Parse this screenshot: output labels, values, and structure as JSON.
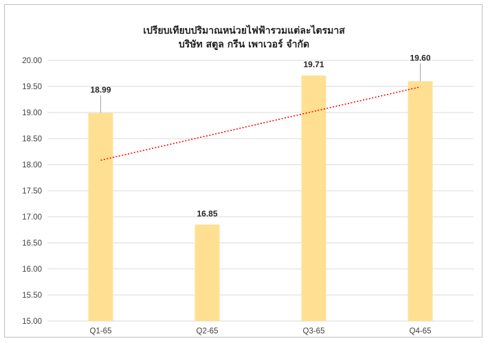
{
  "chart_data": {
    "type": "bar",
    "title": "เปรียบเทียบปริมาณหน่วยไฟฟ้ารวมแต่ละไตรมาส",
    "subtitle": "บริษัท สตูล กรีน เพาเวอร์ จำกัด",
    "categories": [
      "Q1-65",
      "Q2-65",
      "Q3-65",
      "Q4-65"
    ],
    "values": [
      18.99,
      16.85,
      19.71,
      19.6
    ],
    "data_labels": [
      "18.99",
      "16.85",
      "19.71",
      "19.60"
    ],
    "ylim": [
      15.0,
      20.0
    ],
    "yticks": [
      "15.00",
      "15.50",
      "16.00",
      "16.50",
      "17.00",
      "17.50",
      "18.00",
      "18.50",
      "19.00",
      "19.50",
      "20.00"
    ],
    "grid": true,
    "legend": "none",
    "trendline": {
      "type": "linear",
      "style": "dotted",
      "color": "#ff0000"
    },
    "colors": {
      "bar": "#ffe093",
      "grid": "#d9d9d9",
      "leader": "#a6a6a6"
    }
  }
}
